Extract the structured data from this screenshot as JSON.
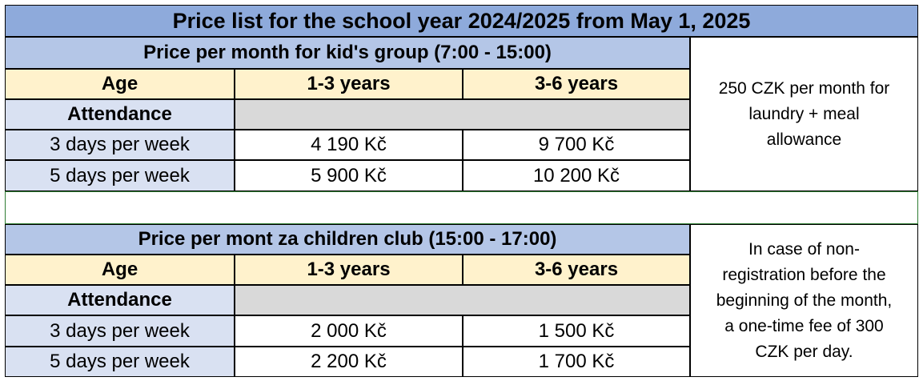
{
  "title": "Price list for the school year 2024/2025 from May 1, 2025",
  "tables": [
    {
      "heading": "Price per month for kid's group (7:00 - 15:00)",
      "age_label": "Age",
      "col1": "1-3 years",
      "col2": "3-6 years",
      "attendance_label": "Attendance",
      "rows": [
        {
          "label": "3 days per week",
          "v1": "4 190 Kč",
          "v2": "9 700 Kč"
        },
        {
          "label": "5 days per week",
          "v1": "5 900 Kč",
          "v2": "10 200 Kč"
        }
      ],
      "note_lines": [
        "250 CZK per month for",
        "laundry + meal",
        "allowance"
      ]
    },
    {
      "heading": "Price per mont za children club (15:00 - 17:00)",
      "age_label": "Age",
      "col1": "1-3 years",
      "col2": "3-6 years",
      "attendance_label": "Attendance",
      "rows": [
        {
          "label": "3 days per week",
          "v1": "2 000 Kč",
          "v2": "1 500 Kč"
        },
        {
          "label": "5 days per week",
          "v1": "2 200 Kč",
          "v2": "1 700 Kč"
        }
      ],
      "note_lines": [
        "In case of non-",
        "registration before the",
        "beginning of the month,",
        "a one-time fee of 300",
        "CZK per day."
      ]
    }
  ]
}
